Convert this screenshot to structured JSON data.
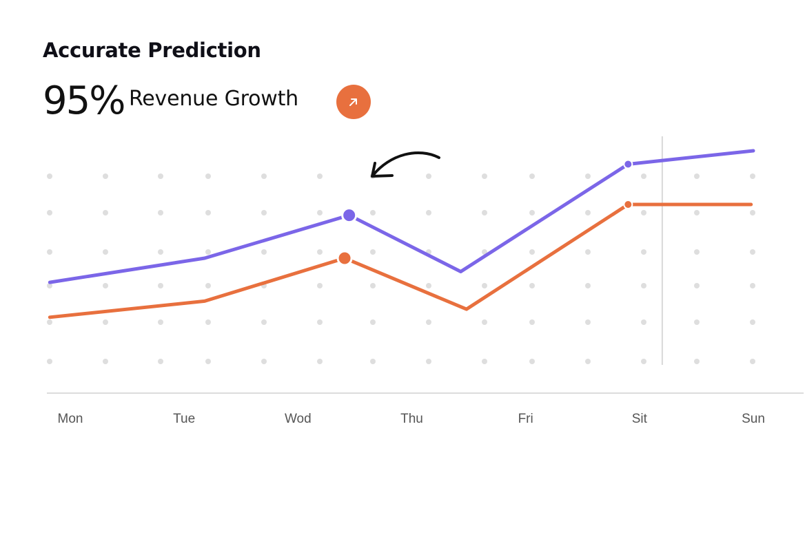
{
  "header": {
    "title": "Accurate Prediction",
    "stat_value": "95%",
    "stat_label": "Revenue Growth",
    "trend_icon": "arrow-up-right-icon"
  },
  "colors": {
    "purple": "#7b66e8",
    "orange": "#e8703e",
    "grid_dot": "#dedede",
    "axis": "#dcdcdc"
  },
  "chart_data": {
    "type": "line",
    "title": "",
    "xlabel": "",
    "ylabel": "",
    "categories": [
      "Mon",
      "Tue",
      "Wod",
      "Thu",
      "Fri",
      "Sit",
      "Sun"
    ],
    "x_range": [
      0,
      6
    ],
    "ylim": [
      0,
      100
    ],
    "grid": "dotted",
    "highlight_marker_x": 5.2,
    "series": [
      {
        "name": "purple",
        "color": "#7b66e8",
        "points": [
          [
            -0.18,
            41
          ],
          [
            1.18,
            50
          ],
          [
            2.45,
            66
          ],
          [
            3.43,
            45
          ],
          [
            4.9,
            85
          ],
          [
            6.0,
            90
          ]
        ],
        "markers": [
          2.45,
          4.9
        ]
      },
      {
        "name": "orange",
        "color": "#e8703e",
        "points": [
          [
            -0.18,
            28
          ],
          [
            1.18,
            34
          ],
          [
            2.41,
            50
          ],
          [
            3.48,
            31
          ],
          [
            4.9,
            70
          ],
          [
            5.98,
            70
          ]
        ],
        "markers": [
          2.41,
          4.9
        ]
      }
    ]
  }
}
